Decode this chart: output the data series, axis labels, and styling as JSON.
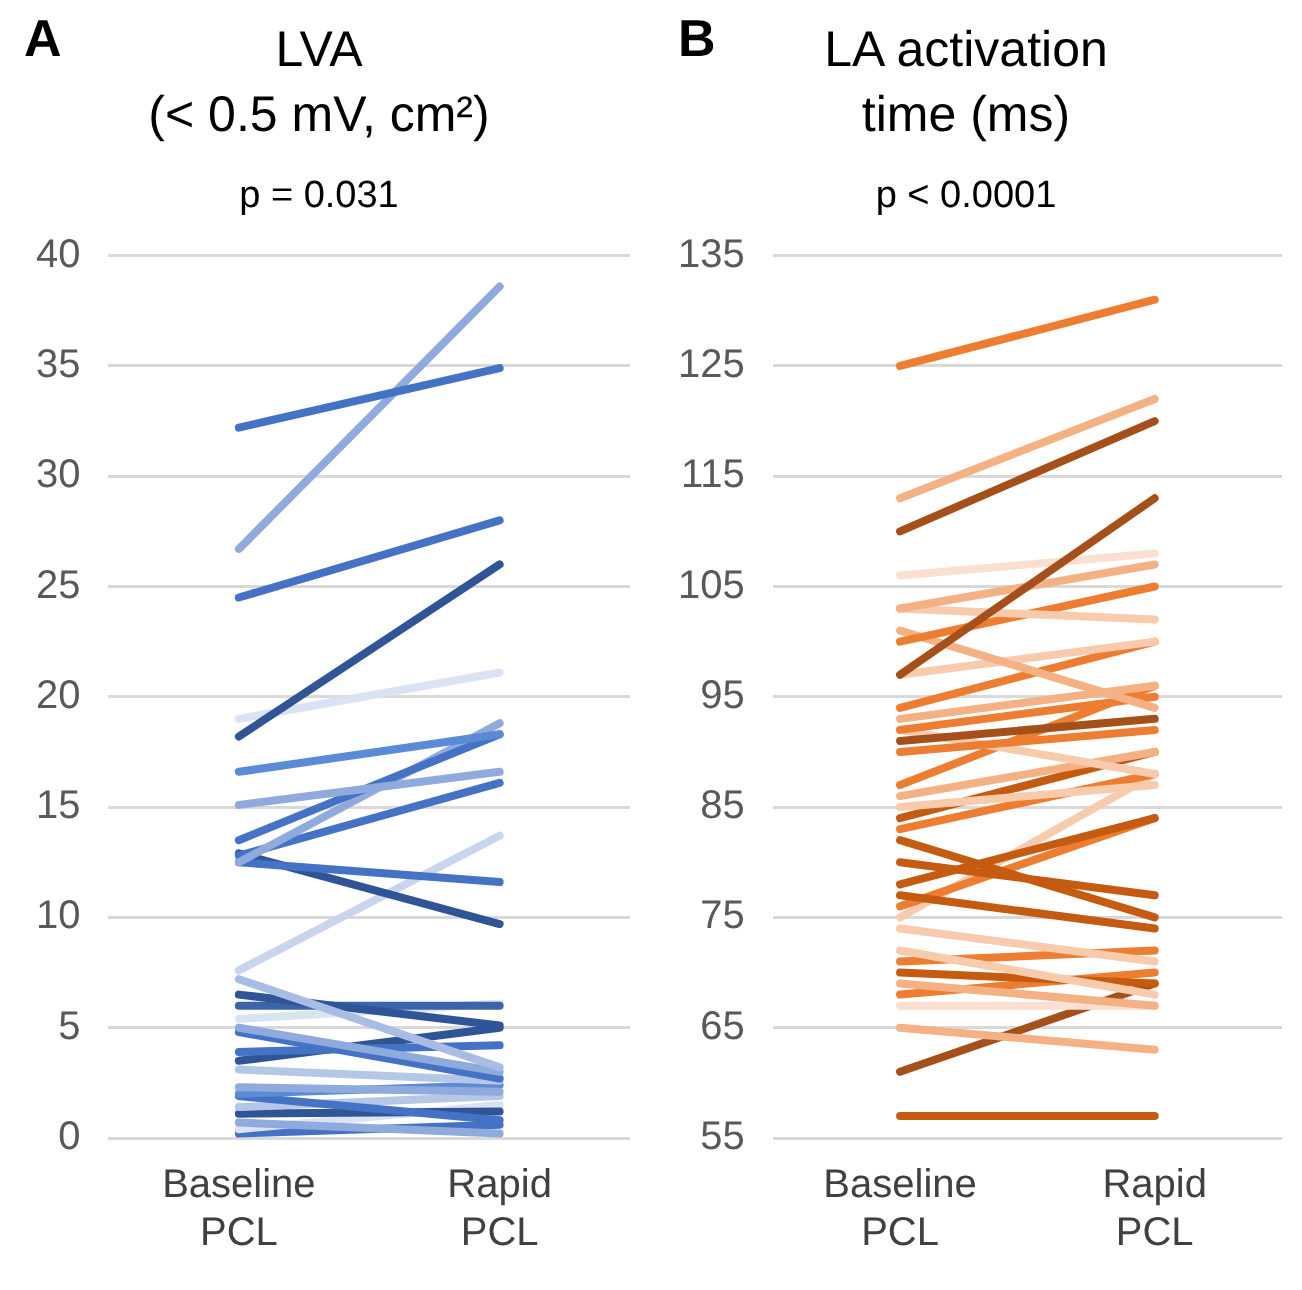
{
  "chart_data": [
    {
      "type": "line",
      "title": "LVA\n(< 0.5 mV, cm²)",
      "subtitle": "p = 0.031",
      "annotations": [
        "A"
      ],
      "categories": [
        "Baseline\nPCL",
        "Rapid\nPCL"
      ],
      "ylim": [
        0,
        40
      ],
      "yticks": [
        0,
        5,
        10,
        15,
        20,
        25,
        30,
        35,
        40
      ],
      "grid": "y",
      "marker": "none",
      "series": [
        {
          "color": "#4472c4",
          "values": [
            32.2,
            34.9
          ]
        },
        {
          "color": "#8faadc",
          "values": [
            26.7,
            38.6
          ]
        },
        {
          "color": "#4472c4",
          "values": [
            24.5,
            28.0
          ]
        },
        {
          "color": "#2f5597",
          "values": [
            18.2,
            26.0
          ]
        },
        {
          "color": "#dae3f3",
          "values": [
            19.0,
            21.1
          ]
        },
        {
          "color": "#5b8bd6",
          "values": [
            16.6,
            18.3
          ]
        },
        {
          "color": "#8faadc",
          "values": [
            15.1,
            16.6
          ]
        },
        {
          "color": "#4472c4",
          "values": [
            13.5,
            18.3
          ]
        },
        {
          "color": "#8faadc",
          "values": [
            12.5,
            18.8
          ]
        },
        {
          "color": "#4472c4",
          "values": [
            12.8,
            16.1
          ]
        },
        {
          "color": "#4472c4",
          "values": [
            12.5,
            11.6
          ]
        },
        {
          "color": "#2f5597",
          "values": [
            12.9,
            9.7
          ]
        },
        {
          "color": "#c9d5ee",
          "values": [
            7.6,
            13.7
          ]
        },
        {
          "color": "#a9bce4",
          "values": [
            7.2,
            3.2
          ]
        },
        {
          "color": "#2f5597",
          "values": [
            6.5,
            5.1
          ]
        },
        {
          "color": "#3b64ad",
          "values": [
            6.0,
            6.0
          ]
        },
        {
          "color": "#dae3f3",
          "values": [
            5.4,
            6.1
          ]
        },
        {
          "color": "#8faadc",
          "values": [
            5.0,
            3.0
          ]
        },
        {
          "color": "#4472c4",
          "values": [
            4.8,
            2.7
          ]
        },
        {
          "color": "#4472c4",
          "values": [
            3.9,
            4.2
          ]
        },
        {
          "color": "#2f5597",
          "values": [
            3.5,
            5.0
          ]
        },
        {
          "color": "#b4c7e7",
          "values": [
            3.1,
            2.6
          ]
        },
        {
          "color": "#8faadc",
          "values": [
            2.3,
            2.1
          ]
        },
        {
          "color": "#5b8bd6",
          "values": [
            2.0,
            2.4
          ]
        },
        {
          "color": "#4472c4",
          "values": [
            1.9,
            0.8
          ]
        },
        {
          "color": "#b4c7e7",
          "values": [
            1.4,
            1.9
          ]
        },
        {
          "color": "#2f5597",
          "values": [
            1.1,
            1.2
          ]
        },
        {
          "color": "#8faadc",
          "values": [
            0.7,
            0.2
          ]
        },
        {
          "color": "#dae3f3",
          "values": [
            0.4,
            1.5
          ]
        },
        {
          "color": "#4472c4",
          "values": [
            0.2,
            0.6
          ]
        }
      ]
    },
    {
      "type": "line",
      "title": "LA activation\ntime (ms)",
      "subtitle": "p < 0.0001",
      "annotations": [
        "B"
      ],
      "categories": [
        "Baseline\nPCL",
        "Rapid\nPCL"
      ],
      "ylim": [
        55,
        135
      ],
      "yticks": [
        55,
        65,
        75,
        85,
        95,
        105,
        115,
        125,
        135
      ],
      "grid": "y",
      "marker": "none",
      "series": [
        {
          "color": "#ed7d31",
          "values": [
            125,
            131
          ]
        },
        {
          "color": "#f4b183",
          "values": [
            113,
            122
          ]
        },
        {
          "color": "#a5501a",
          "values": [
            110,
            120
          ]
        },
        {
          "color": "#a5501a",
          "values": [
            97,
            113
          ]
        },
        {
          "color": "#fbe0d1",
          "values": [
            106,
            108
          ]
        },
        {
          "color": "#f4b183",
          "values": [
            103,
            107
          ]
        },
        {
          "color": "#f8cbad",
          "values": [
            103,
            102
          ]
        },
        {
          "color": "#ed7d31",
          "values": [
            100,
            105
          ]
        },
        {
          "color": "#f4b183",
          "values": [
            101,
            94
          ]
        },
        {
          "color": "#f8cbad",
          "values": [
            97,
            100
          ]
        },
        {
          "color": "#ed7d31",
          "values": [
            94,
            100
          ]
        },
        {
          "color": "#f4b183",
          "values": [
            93,
            96
          ]
        },
        {
          "color": "#ed7d31",
          "values": [
            92,
            95
          ]
        },
        {
          "color": "#a5501a",
          "values": [
            91,
            93
          ]
        },
        {
          "color": "#ed7d31",
          "values": [
            90,
            92
          ]
        },
        {
          "color": "#f8cbad",
          "values": [
            92,
            88
          ]
        },
        {
          "color": "#ed7d31",
          "values": [
            87,
            96
          ]
        },
        {
          "color": "#f4b183",
          "values": [
            86,
            90
          ]
        },
        {
          "color": "#f8cbad",
          "values": [
            85,
            87
          ]
        },
        {
          "color": "#c55a11",
          "values": [
            84,
            90
          ]
        },
        {
          "color": "#ed7d31",
          "values": [
            83,
            88
          ]
        },
        {
          "color": "#c55a11",
          "values": [
            82,
            75
          ]
        },
        {
          "color": "#c55a11",
          "values": [
            80,
            77
          ]
        },
        {
          "color": "#c55a11",
          "values": [
            78,
            84
          ]
        },
        {
          "color": "#c55a11",
          "values": [
            77,
            74
          ]
        },
        {
          "color": "#ed7d31",
          "values": [
            76,
            84
          ]
        },
        {
          "color": "#f8cbad",
          "values": [
            75,
            88
          ]
        },
        {
          "color": "#f8cbad",
          "values": [
            74,
            71
          ]
        },
        {
          "color": "#f8cbad",
          "values": [
            72,
            68
          ]
        },
        {
          "color": "#ed7d31",
          "values": [
            71,
            72
          ]
        },
        {
          "color": "#c55a11",
          "values": [
            70,
            69
          ]
        },
        {
          "color": "#f4b183",
          "values": [
            69,
            67
          ]
        },
        {
          "color": "#ed7d31",
          "values": [
            68,
            70
          ]
        },
        {
          "color": "#fbe0d1",
          "values": [
            67,
            67
          ]
        },
        {
          "color": "#f4b183",
          "values": [
            65,
            63
          ]
        },
        {
          "color": "#a5501a",
          "values": [
            61,
            69
          ]
        },
        {
          "color": "#c55a11",
          "values": [
            57,
            57
          ]
        }
      ]
    }
  ]
}
